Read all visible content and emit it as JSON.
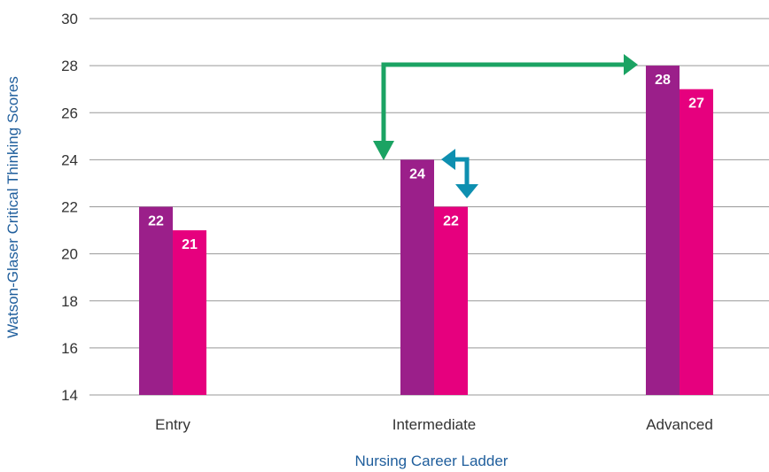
{
  "chart_data": {
    "type": "bar",
    "title": "",
    "xlabel": "Nursing Career Ladder",
    "ylabel": "Watson-Glaser Critical Thinking Scores",
    "categories": [
      "Entry",
      "Intermediate",
      "Advanced"
    ],
    "ylim": [
      14,
      30
    ],
    "yticks": [
      14,
      16,
      18,
      20,
      22,
      24,
      26,
      28,
      30
    ],
    "grid": true,
    "series": [
      {
        "values": [
          22,
          24,
          28
        ],
        "color": "#9B1F8A"
      },
      {
        "values": [
          21,
          22,
          27
        ],
        "color": "#E6007E"
      }
    ],
    "data_labels": [
      [
        "22",
        "24",
        "28"
      ],
      [
        "21",
        "22",
        "27"
      ]
    ],
    "annotations": [
      {
        "type": "arrow",
        "color": "#1BA363",
        "from": "Advanced",
        "to": "Intermediate",
        "description": "elbow arrow between Advanced and Intermediate bars"
      },
      {
        "type": "arrow",
        "color": "#0E8FB0",
        "between": "Intermediate series",
        "description": "double elbow arrow between the two Intermediate bars"
      }
    ],
    "axis_title_color": "#1F5E9C",
    "grid_color": "#999999"
  }
}
